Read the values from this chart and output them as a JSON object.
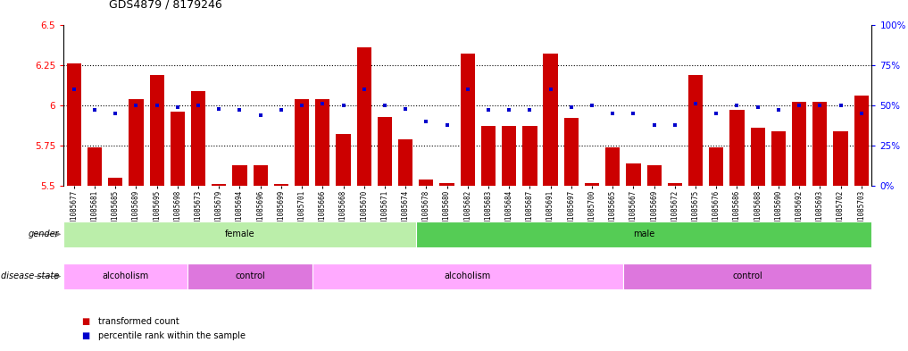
{
  "title": "GDS4879 / 8179246",
  "samples": [
    "GSM1085677",
    "GSM1085681",
    "GSM1085685",
    "GSM1085689",
    "GSM1085695",
    "GSM1085698",
    "GSM1085673",
    "GSM1085679",
    "GSM1085694",
    "GSM1085696",
    "GSM1085699",
    "GSM1085701",
    "GSM1085666",
    "GSM1085668",
    "GSM1085670",
    "GSM1085671",
    "GSM1085674",
    "GSM1085678",
    "GSM1085680",
    "GSM1085682",
    "GSM1085683",
    "GSM1085684",
    "GSM1085687",
    "GSM1085691",
    "GSM1085697",
    "GSM1085700",
    "GSM1085665",
    "GSM1085667",
    "GSM1085669",
    "GSM1085672",
    "GSM1085675",
    "GSM1085676",
    "GSM1085686",
    "GSM1085688",
    "GSM1085690",
    "GSM1085692",
    "GSM1085693",
    "GSM1085702",
    "GSM1085703"
  ],
  "bar_values": [
    6.26,
    5.74,
    5.55,
    6.04,
    6.19,
    5.96,
    6.09,
    5.51,
    5.63,
    5.63,
    5.51,
    6.04,
    6.04,
    5.82,
    6.36,
    5.93,
    5.79,
    5.54,
    5.52,
    6.32,
    5.87,
    5.87,
    5.87,
    6.32,
    5.92,
    5.52,
    5.74,
    5.64,
    5.63,
    5.52,
    6.19,
    5.74,
    5.97,
    5.86,
    5.84,
    6.02,
    6.02,
    5.84,
    6.06
  ],
  "percentile_values": [
    60,
    47,
    45,
    50,
    50,
    49,
    50,
    48,
    47,
    44,
    47,
    50,
    51,
    50,
    60,
    50,
    48,
    40,
    38,
    60,
    47,
    47,
    47,
    60,
    49,
    50,
    45,
    45,
    38,
    38,
    51,
    45,
    50,
    49,
    47,
    50,
    50,
    50,
    45
  ],
  "ylim_left": [
    5.5,
    6.5
  ],
  "ylim_right": [
    0,
    100
  ],
  "yticks_left": [
    5.5,
    5.75,
    6.0,
    6.25,
    6.5
  ],
  "yticks_right": [
    0,
    25,
    50,
    75,
    100
  ],
  "ytick_labels_left": [
    "5.5",
    "5.75",
    "6",
    "6.25",
    "6.5"
  ],
  "ytick_labels_right": [
    "0%",
    "25%",
    "50%",
    "75%",
    "100%"
  ],
  "bar_color": "#cc0000",
  "dot_color": "#0000cc",
  "gender_regions": [
    {
      "label": "female",
      "start": 0,
      "end": 17,
      "color": "#bbeeaa"
    },
    {
      "label": "male",
      "start": 17,
      "end": 39,
      "color": "#55cc55"
    }
  ],
  "disease_regions": [
    {
      "label": "alcoholism",
      "start": 0,
      "end": 6,
      "color": "#ffaaff"
    },
    {
      "label": "control",
      "start": 6,
      "end": 12,
      "color": "#dd77dd"
    },
    {
      "label": "alcoholism",
      "start": 12,
      "end": 27,
      "color": "#ffaaff"
    },
    {
      "label": "control",
      "start": 27,
      "end": 39,
      "color": "#dd77dd"
    }
  ],
  "grid_dotted_values": [
    5.75,
    6.0,
    6.25
  ],
  "bar_width": 0.7,
  "dot_size": 10,
  "label_fontsize": 7,
  "tick_fontsize": 5.5,
  "title_fontsize": 9
}
